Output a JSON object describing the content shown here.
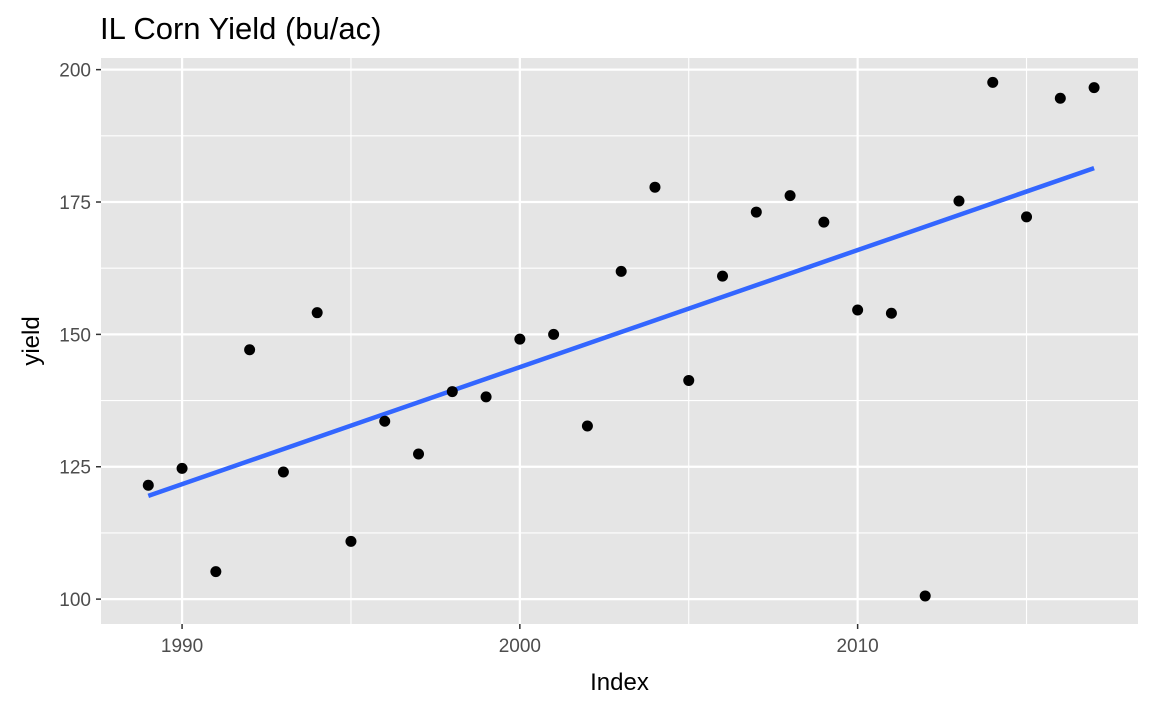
{
  "chart_data": {
    "type": "scatter",
    "title": "IL Corn Yield (bu/ac)",
    "xlabel": "Index",
    "ylabel": "yield",
    "xlim": [
      1987.6,
      2018.3
    ],
    "ylim": [
      95.3,
      202.2
    ],
    "x_ticks": [
      1990,
      2000,
      2010
    ],
    "y_ticks": [
      100,
      125,
      150,
      175,
      200
    ],
    "grid": true,
    "legend": "none",
    "points": [
      {
        "x": 1989,
        "y": 121.5
      },
      {
        "x": 1990,
        "y": 124.7
      },
      {
        "x": 1991,
        "y": 105.2
      },
      {
        "x": 1992,
        "y": 147.1
      },
      {
        "x": 1993,
        "y": 124.0
      },
      {
        "x": 1994,
        "y": 154.1
      },
      {
        "x": 1995,
        "y": 110.9
      },
      {
        "x": 1996,
        "y": 133.6
      },
      {
        "x": 1997,
        "y": 127.4
      },
      {
        "x": 1998,
        "y": 139.2
      },
      {
        "x": 1999,
        "y": 138.2
      },
      {
        "x": 2000,
        "y": 149.1
      },
      {
        "x": 2001,
        "y": 150.0
      },
      {
        "x": 2002,
        "y": 132.7
      },
      {
        "x": 2003,
        "y": 161.9
      },
      {
        "x": 2004,
        "y": 177.8
      },
      {
        "x": 2005,
        "y": 141.3
      },
      {
        "x": 2006,
        "y": 161.0
      },
      {
        "x": 2007,
        "y": 173.1
      },
      {
        "x": 2008,
        "y": 176.2
      },
      {
        "x": 2009,
        "y": 171.2
      },
      {
        "x": 2010,
        "y": 154.6
      },
      {
        "x": 2011,
        "y": 154.0
      },
      {
        "x": 2012,
        "y": 100.6
      },
      {
        "x": 2013,
        "y": 175.2
      },
      {
        "x": 2014,
        "y": 197.6
      },
      {
        "x": 2015,
        "y": 172.2
      },
      {
        "x": 2016,
        "y": 194.6
      },
      {
        "x": 2017,
        "y": 196.6
      }
    ],
    "trend_line": {
      "x": [
        1989,
        2017
      ],
      "y": [
        119.5,
        181.4
      ]
    },
    "colors": {
      "panel": "#e5e5e5",
      "grid": "#ffffff",
      "points": "#000000",
      "trend": "#3366ff"
    }
  }
}
